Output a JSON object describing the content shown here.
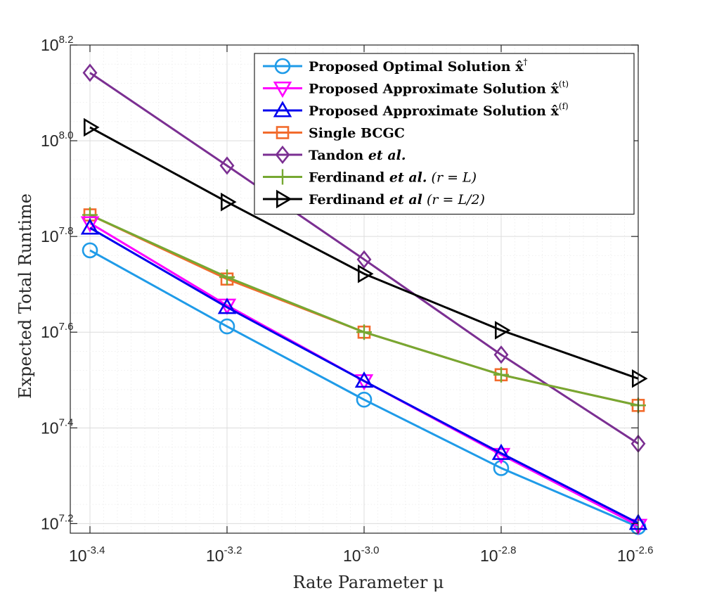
{
  "chart_data": {
    "type": "line",
    "title": "",
    "xlabel": "Rate Parameter μ",
    "ylabel": "Expected Total Runtime",
    "x_scale": "log",
    "y_scale": "log",
    "x_log10": [
      -3.4,
      -3.2,
      -3.0,
      -2.8,
      -2.6
    ],
    "xlim_log10": [
      -3.4,
      -2.6
    ],
    "ylim_log10": [
      7.18,
      8.2
    ],
    "x_ticks": [
      {
        "base": "10",
        "exp": "-3.4",
        "v": -3.4
      },
      {
        "base": "10",
        "exp": "-3.2",
        "v": -3.2
      },
      {
        "base": "10",
        "exp": "-3.0",
        "v": -3.0
      },
      {
        "base": "10",
        "exp": "-2.8",
        "v": -2.8
      },
      {
        "base": "10",
        "exp": "-2.6",
        "v": -2.6
      }
    ],
    "y_ticks": [
      {
        "base": "10",
        "exp": "7.2",
        "v": 7.2
      },
      {
        "base": "10",
        "exp": "7.4",
        "v": 7.4
      },
      {
        "base": "10",
        "exp": "7.6",
        "v": 7.6
      },
      {
        "base": "10",
        "exp": "7.8",
        "v": 7.8
      },
      {
        "base": "10",
        "exp": "8.0",
        "v": 8.0
      },
      {
        "base": "10",
        "exp": "8.2",
        "v": 8.2
      }
    ],
    "grid": true,
    "legend_position": "top-right",
    "series": [
      {
        "key": "optimal",
        "name": "Proposed Optimal Solution x̂†",
        "legend_main": "Proposed Optimal Solution ",
        "legend_math": "x̂",
        "legend_sup": "†",
        "legend_tail": "",
        "color": "#1f9be8",
        "marker": "circle",
        "values_log10": [
          7.771,
          7.612,
          7.459,
          7.316,
          7.193
        ]
      },
      {
        "key": "approx_t",
        "name": "Proposed Approximate Solution x̂(t)",
        "legend_main": "Proposed Approximate Solution ",
        "legend_math": "x̂",
        "legend_sup": "(t)",
        "legend_tail": "",
        "color": "#ff00ff",
        "marker": "triangle-down",
        "values_log10": [
          7.828,
          7.656,
          7.498,
          7.344,
          7.196
        ]
      },
      {
        "key": "approx_f",
        "name": "Proposed Approximate Solution x̂(f)",
        "legend_main": "Proposed Approximate Solution ",
        "legend_math": "x̂",
        "legend_sup": "(f)",
        "legend_tail": "",
        "color": "#0000ee",
        "marker": "triangle-up",
        "values_log10": [
          7.818,
          7.652,
          7.498,
          7.347,
          7.201
        ]
      },
      {
        "key": "bcgc",
        "name": "Single BCGC",
        "legend_main": "Single BCGC",
        "legend_math": "",
        "legend_sup": "",
        "legend_tail": "",
        "color": "#f26b2c",
        "marker": "square",
        "values_log10": [
          7.845,
          7.711,
          7.6,
          7.511,
          7.447
        ]
      },
      {
        "key": "tandon",
        "name": "Tandon et al.",
        "legend_main": "Tandon ",
        "legend_math": "et al.",
        "legend_sup": "",
        "legend_tail": "",
        "color": "#7b2f92",
        "marker": "diamond",
        "values_log10": [
          8.142,
          7.948,
          7.752,
          7.553,
          7.367
        ]
      },
      {
        "key": "ferd_L",
        "name": "Ferdinand et al. (r = L)",
        "legend_main": "Ferdinand ",
        "legend_math": "et al.",
        "legend_sup": "",
        "legend_tail": " (r = L)",
        "color": "#76a832",
        "marker": "plus",
        "values_log10": [
          7.845,
          7.715,
          7.6,
          7.511,
          7.447
        ]
      },
      {
        "key": "ferd_L2",
        "name": "Ferdinand et al (r = L/2)",
        "legend_main": "Ferdinand ",
        "legend_math": "et al",
        "legend_sup": "",
        "legend_tail": " (r = L/2)",
        "color": "#000000",
        "marker": "triangle-right",
        "values_log10": [
          8.028,
          7.872,
          7.722,
          7.604,
          7.503
        ]
      }
    ]
  }
}
